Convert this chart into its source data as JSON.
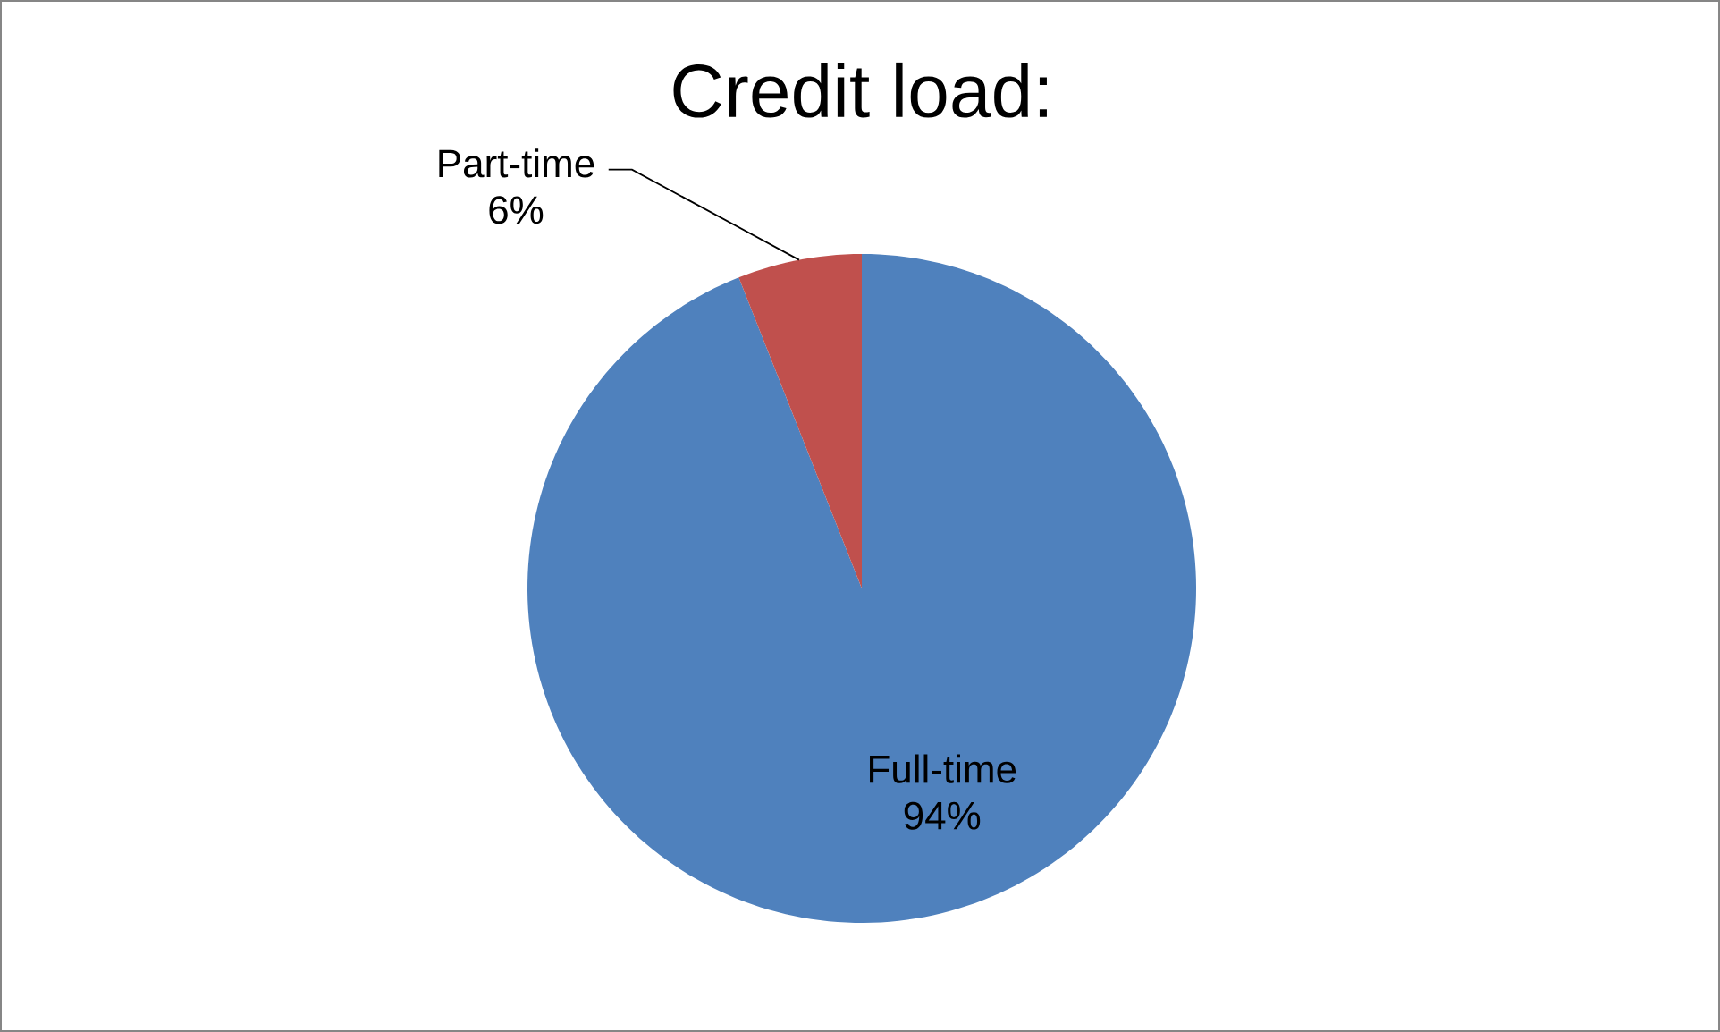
{
  "chart_data": {
    "type": "pie",
    "title": "Credit load:",
    "categories": [
      "Full-time",
      "Part-time"
    ],
    "values": [
      94,
      6
    ],
    "value_labels": [
      "94%",
      "6%"
    ],
    "colors": [
      "#4f81bd",
      "#c0504d"
    ]
  }
}
